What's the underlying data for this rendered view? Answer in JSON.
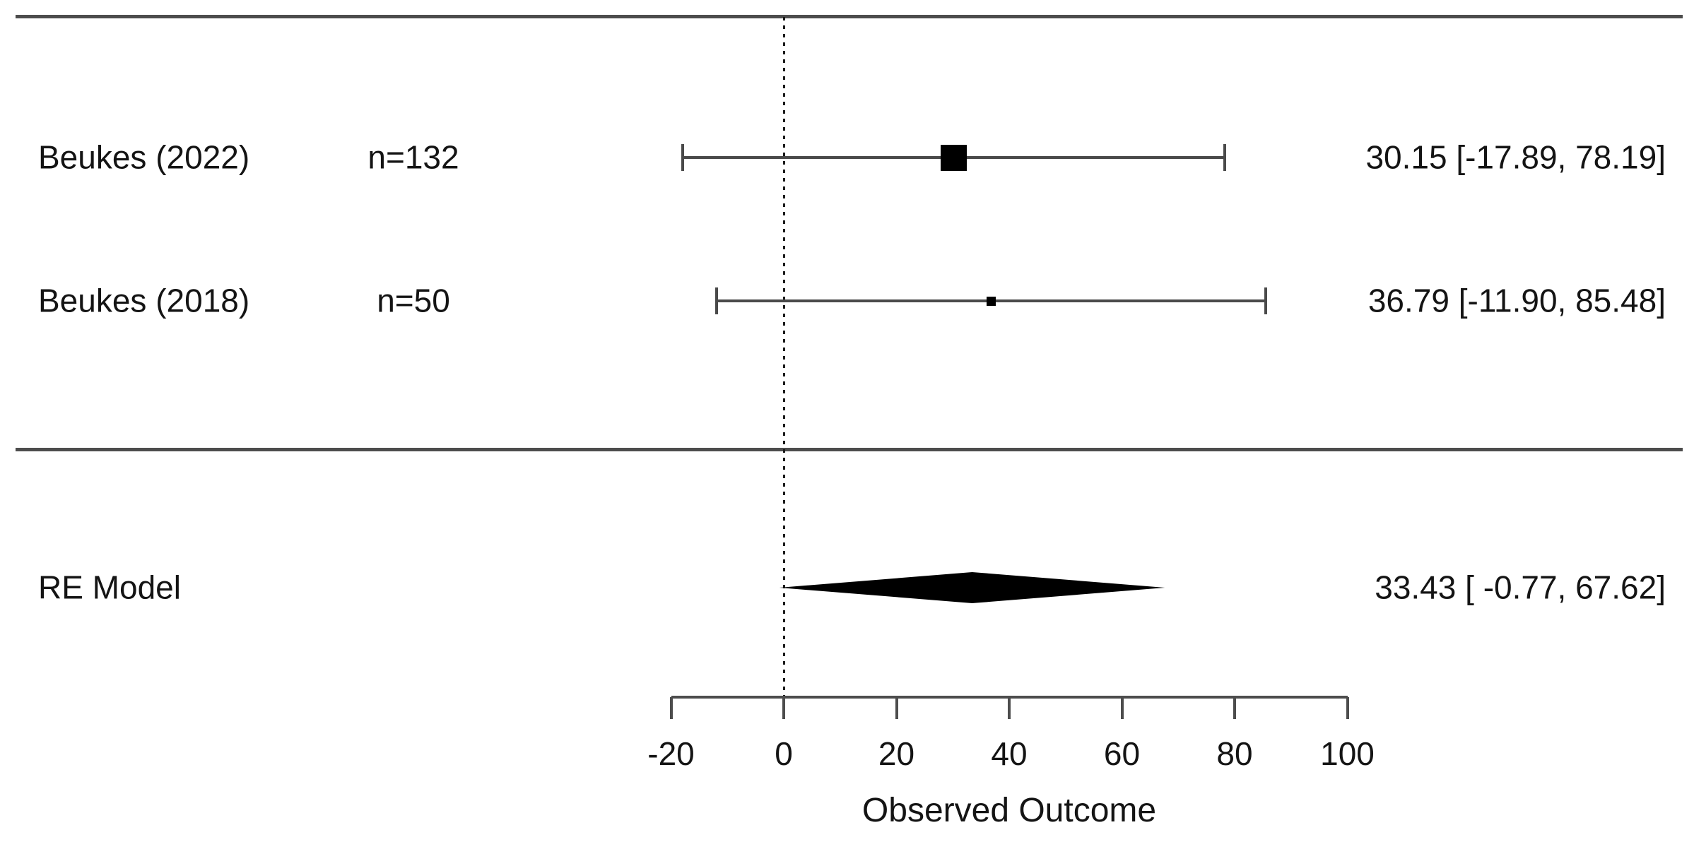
{
  "chart_data": {
    "type": "forest",
    "xlabel": "Observed Outcome",
    "axis": {
      "xlim": [
        -20,
        100
      ],
      "ticks": [
        -20,
        0,
        20,
        40,
        60,
        80,
        100
      ],
      "tick_labels": [
        "-20",
        "0",
        "20",
        "40",
        "60",
        "80",
        "100"
      ],
      "reference_line": 0,
      "grid": false
    },
    "studies": [
      {
        "label": "Beukes (2022)",
        "n_label": "n=132",
        "estimate": 30.15,
        "ci_lower": -17.89,
        "ci_upper": 78.19,
        "annotation": "30.15 [-17.89, 78.19]",
        "point_size": "large"
      },
      {
        "label": "Beukes (2018)",
        "n_label": "n=50",
        "estimate": 36.79,
        "ci_lower": -11.9,
        "ci_upper": 85.48,
        "annotation": "36.79 [-11.90, 85.48]",
        "point_size": "small"
      }
    ],
    "summary": {
      "label": "RE Model",
      "estimate": 33.43,
      "ci_lower": -0.77,
      "ci_upper": 67.62,
      "annotation": "33.43 [ -0.77, 67.62]"
    }
  },
  "colors": {
    "line": "#4a4a4a",
    "rule": "#4d4d4d",
    "text": "#141414",
    "point": "#000000",
    "background": "#ffffff"
  }
}
